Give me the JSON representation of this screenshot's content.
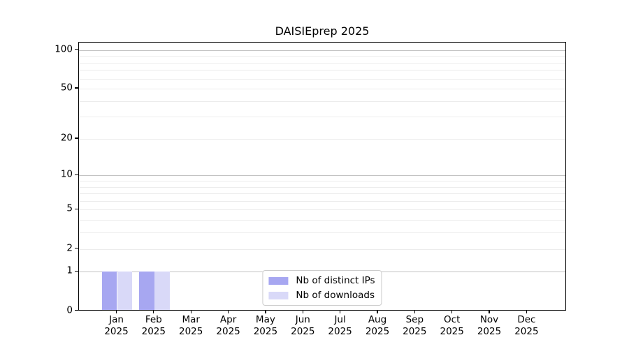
{
  "title": "DAISIEprep 2025",
  "colors": {
    "ips_bar": "#a7a7f1",
    "downloads_bar": "#d9d9f8",
    "grid_decade": "#c2c2c2",
    "grid_minor": "#ececec",
    "axis": "#000000",
    "legend_border": "#cccccc",
    "text": "#000000"
  },
  "chart_data": {
    "type": "bar",
    "title": "DAISIEprep 2025",
    "categories": [
      "Jan 2025",
      "Feb 2025",
      "Mar 2025",
      "Apr 2025",
      "May 2025",
      "Jun 2025",
      "Jul 2025",
      "Aug 2025",
      "Sep 2025",
      "Oct 2025",
      "Nov 2025",
      "Dec 2025"
    ],
    "month_labels": [
      "Jan",
      "Feb",
      "Mar",
      "Apr",
      "May",
      "Jun",
      "Jul",
      "Aug",
      "Sep",
      "Oct",
      "Nov",
      "Dec"
    ],
    "year_label": "2025",
    "series": [
      {
        "name": "Nb of distinct IPs",
        "color": "#a7a7f1",
        "values": [
          1,
          1,
          0,
          0,
          0,
          0,
          0,
          0,
          0,
          0,
          0,
          0
        ]
      },
      {
        "name": "Nb of downloads",
        "color": "#d9d9f8",
        "values": [
          1,
          1,
          0,
          0,
          0,
          0,
          0,
          0,
          0,
          0,
          0,
          0
        ]
      }
    ],
    "y_axis": {
      "scale": "log10(value+1)",
      "tick_values": [
        0,
        1,
        2,
        5,
        10,
        20,
        50,
        100
      ],
      "tick_labels": [
        "0",
        "1",
        "2",
        "5",
        "10",
        "20",
        "50",
        "100"
      ],
      "decade_gridline_values": [
        1,
        10,
        100
      ],
      "minor_gridline_values": [
        3,
        4,
        6,
        7,
        8,
        9,
        30,
        40,
        60,
        70,
        80,
        90
      ],
      "ylim": [
        0,
        113
      ]
    },
    "grid": true,
    "legend_position": "lower center"
  }
}
